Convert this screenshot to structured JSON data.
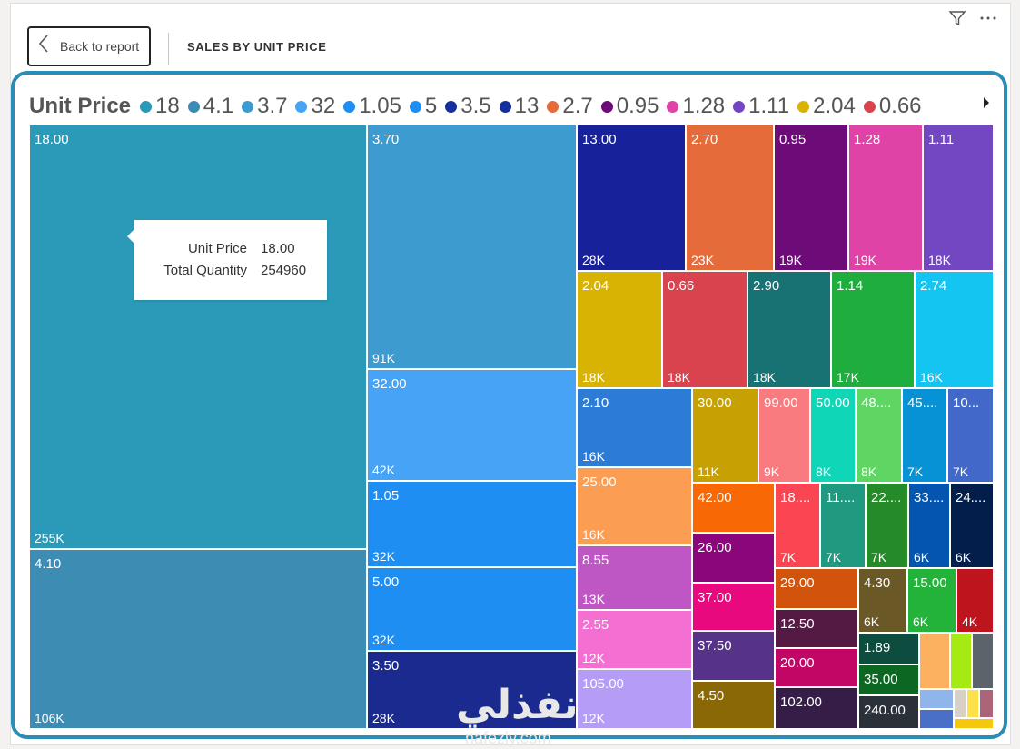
{
  "header": {
    "back_label": "Back to report",
    "page_title": "SALES BY UNIT PRICE",
    "filter_icon": "filter-icon",
    "more_icon": "more-options-icon"
  },
  "legend": {
    "title": "Unit Price",
    "items": [
      {
        "label": "18",
        "color": "#2b9ab8"
      },
      {
        "label": "4.1",
        "color": "#3d8cb3"
      },
      {
        "label": "3.7",
        "color": "#3e9bd0"
      },
      {
        "label": "32",
        "color": "#47a3f5"
      },
      {
        "label": "1.05",
        "color": "#1e8ef2"
      },
      {
        "label": "5",
        "color": "#1e8ef2"
      },
      {
        "label": "3.5",
        "color": "#14309c"
      },
      {
        "label": "13",
        "color": "#14309c"
      },
      {
        "label": "2.7",
        "color": "#e66b3a"
      },
      {
        "label": "0.95",
        "color": "#6d0b79"
      },
      {
        "label": "1.28",
        "color": "#e043a6"
      },
      {
        "label": "1.11",
        "color": "#7447c2"
      },
      {
        "label": "2.04",
        "color": "#d9b304"
      },
      {
        "label": "0.66",
        "color": "#d8434e"
      }
    ]
  },
  "tooltip": {
    "rows": [
      {
        "key": "Unit Price",
        "value": "18.00"
      },
      {
        "key": "Total Quantity",
        "value": "254960"
      }
    ]
  },
  "watermark": {
    "arabic": "نفذلي",
    "latin": "nafezly.com"
  },
  "chart_data": {
    "type": "treemap",
    "title": "SALES BY UNIT PRICE",
    "legend_title": "Unit Price",
    "tiles": [
      {
        "label": "18.00",
        "value": "255K",
        "color": "#2b9ab8"
      },
      {
        "label": "4.10",
        "value": "106K",
        "color": "#3d8cb3"
      },
      {
        "label": "3.70",
        "value": "91K",
        "color": "#3e9bd0"
      },
      {
        "label": "32.00",
        "value": "42K",
        "color": "#47a3f5"
      },
      {
        "label": "1.05",
        "value": "32K",
        "color": "#1e8ef2"
      },
      {
        "label": "5.00",
        "value": "32K",
        "color": "#1e8ef2"
      },
      {
        "label": "3.50",
        "value": "28K",
        "color": "#1a2a8e"
      },
      {
        "label": "13.00",
        "value": "28K",
        "color": "#17229a"
      },
      {
        "label": "2.70",
        "value": "23K",
        "color": "#e66b3a"
      },
      {
        "label": "0.95",
        "value": "19K",
        "color": "#6d0b79"
      },
      {
        "label": "1.28",
        "value": "19K",
        "color": "#e043a6"
      },
      {
        "label": "1.11",
        "value": "18K",
        "color": "#7447c2"
      },
      {
        "label": "2.04",
        "value": "18K",
        "color": "#d9b304"
      },
      {
        "label": "0.66",
        "value": "18K",
        "color": "#d8434e"
      },
      {
        "label": "2.90",
        "value": "18K",
        "color": "#187173"
      },
      {
        "label": "1.14",
        "value": "17K",
        "color": "#1fae3d"
      },
      {
        "label": "2.74",
        "value": "16K",
        "color": "#13c5f0"
      },
      {
        "label": "2.10",
        "value": "16K",
        "color": "#2c7cd6"
      },
      {
        "label": "25.00",
        "value": "16K",
        "color": "#fb9d52"
      },
      {
        "label": "8.55",
        "value": "13K",
        "color": "#be56c3"
      },
      {
        "label": "2.55",
        "value": "12K",
        "color": "#f46fd2"
      },
      {
        "label": "105.00",
        "value": "12K",
        "color": "#b49cf7"
      },
      {
        "label": "30.00",
        "value": "11K",
        "color": "#c7a003"
      },
      {
        "label": "99.00",
        "value": "9K",
        "color": "#fa7b7f"
      },
      {
        "label": "50.00",
        "value": "8K",
        "color": "#0ed6b7"
      },
      {
        "label": "48....",
        "value": "8K",
        "color": "#5fd563"
      },
      {
        "label": "45....",
        "value": "7K",
        "color": "#0792d5"
      },
      {
        "label": "10...",
        "value": "7K",
        "color": "#4268c9"
      },
      {
        "label": "42.00",
        "value": "",
        "color": "#f86805"
      },
      {
        "label": "26.00",
        "value": "",
        "color": "#8b067b"
      },
      {
        "label": "37.00",
        "value": "",
        "color": "#e9097f"
      },
      {
        "label": "37.50",
        "value": "",
        "color": "#573289"
      },
      {
        "label": "4.50",
        "value": "",
        "color": "#8b6806"
      },
      {
        "label": "18....",
        "value": "7K",
        "color": "#fc4553"
      },
      {
        "label": "11....",
        "value": "7K",
        "color": "#1f9980"
      },
      {
        "label": "22....",
        "value": "7K",
        "color": "#258a28"
      },
      {
        "label": "33....",
        "value": "6K",
        "color": "#0355b0"
      },
      {
        "label": "24....",
        "value": "6K",
        "color": "#041e4c"
      },
      {
        "label": "29.00",
        "value": "",
        "color": "#d2540c"
      },
      {
        "label": "12.50",
        "value": "",
        "color": "#541a43"
      },
      {
        "label": "20.00",
        "value": "",
        "color": "#c20665"
      },
      {
        "label": "102.00",
        "value": "",
        "color": "#351d48"
      },
      {
        "label": "4.30",
        "value": "6K",
        "color": "#6b5827"
      },
      {
        "label": "15.00",
        "value": "6K",
        "color": "#23b33a"
      },
      {
        "label": "",
        "value": "4K",
        "color": "#bd141e"
      },
      {
        "label": "1.89",
        "value": "",
        "color": "#0c4d3f"
      },
      {
        "label": "35.00",
        "value": "",
        "color": "#0c6722"
      },
      {
        "label": "240.00",
        "value": "",
        "color": "#2b3138"
      },
      {
        "label": "",
        "value": "",
        "color": "#fbb160"
      },
      {
        "label": "",
        "value": "",
        "color": "#a5ea12"
      },
      {
        "label": "",
        "value": "",
        "color": "#5d636a"
      },
      {
        "label": "",
        "value": "",
        "color": "#8fb5ea"
      },
      {
        "label": "",
        "value": "",
        "color": "#d6d0c6"
      },
      {
        "label": "",
        "value": "",
        "color": "#fde04a"
      },
      {
        "label": "",
        "value": "",
        "color": "#ab6478"
      },
      {
        "label": "",
        "value": "",
        "color": "#4a6fc7"
      },
      {
        "label": "",
        "value": "",
        "color": "#f5c80e"
      },
      {
        "label": "",
        "value": "",
        "color": "#2e79b8"
      }
    ]
  }
}
